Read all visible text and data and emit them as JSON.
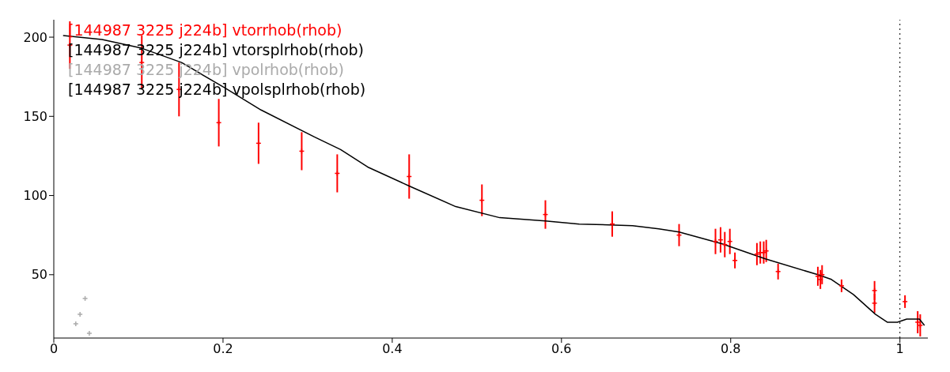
{
  "chart_data": {
    "type": "scatter",
    "xlim": [
      0,
      1.033
    ],
    "xticks": [
      0,
      0.2,
      0.4,
      0.6,
      0.8,
      1
    ],
    "ylim": [
      10,
      211
    ],
    "yticks": [
      50,
      100,
      150,
      200
    ],
    "grid": false,
    "legend": "top left",
    "ref_lines": [
      {
        "axis": "x",
        "value": 1,
        "line_style": "dotted",
        "color": "#000000"
      }
    ],
    "series": [
      {
        "name": "[144987 3225 j224b] vtorrhob(rhob)",
        "marker": "cross",
        "color": "#ff0000",
        "x": [
          0.019,
          0.104,
          0.148,
          0.195,
          0.242,
          0.293,
          0.335,
          0.42,
          0.506,
          0.581,
          0.66,
          0.739,
          0.782,
          0.788,
          0.793,
          0.799,
          0.805,
          0.831,
          0.835,
          0.839,
          0.842,
          0.856,
          0.903,
          0.906,
          0.908,
          0.931,
          0.97,
          0.97,
          1.006,
          1.021,
          1.024
        ],
        "values": [
          195,
          184,
          167,
          146,
          133,
          128,
          114,
          112,
          97,
          88,
          82,
          75,
          71,
          72,
          69,
          71,
          59,
          63,
          64,
          64,
          65,
          52,
          49,
          47,
          50,
          43,
          40,
          32,
          33,
          20,
          18
        ],
        "errors": [
          15,
          17,
          17,
          15,
          13,
          12,
          12,
          14,
          10,
          9,
          8,
          7,
          8,
          8,
          8,
          8,
          5,
          7,
          7,
          7,
          7,
          5,
          6,
          6,
          6,
          4,
          6,
          6,
          4,
          7,
          7
        ]
      },
      {
        "name": "[144987 3225 j224b] vtorsplrhob(rhob)",
        "type": "line",
        "marker": "none",
        "color": "#000000",
        "x": [
          0.011,
          0.057,
          0.104,
          0.151,
          0.202,
          0.245,
          0.308,
          0.339,
          0.371,
          0.42,
          0.475,
          0.527,
          0.581,
          0.621,
          0.684,
          0.715,
          0.739,
          0.79,
          0.841,
          0.903,
          0.919,
          0.945,
          0.971,
          0.985,
          0.997,
          1.008,
          1.023,
          1.029
        ],
        "values": [
          201,
          198.5,
          193,
          184,
          168,
          154,
          137,
          129,
          118,
          106,
          93,
          86,
          84,
          82,
          81,
          79,
          77,
          69.5,
          60,
          50,
          47,
          37.5,
          25,
          20,
          20,
          22,
          22,
          18
        ]
      },
      {
        "name": "[144987 3225 j224b] vpolrhob(rhob)",
        "marker": "cross",
        "color": "#aaaaaa",
        "x": [
          0.026,
          0.031,
          0.037,
          0.042
        ],
        "values": [
          19,
          25,
          35,
          13
        ]
      },
      {
        "name": "[144987 3225 j224b] vpolsplrhob(rhob)",
        "type": "line",
        "color": "#000000"
      }
    ]
  }
}
